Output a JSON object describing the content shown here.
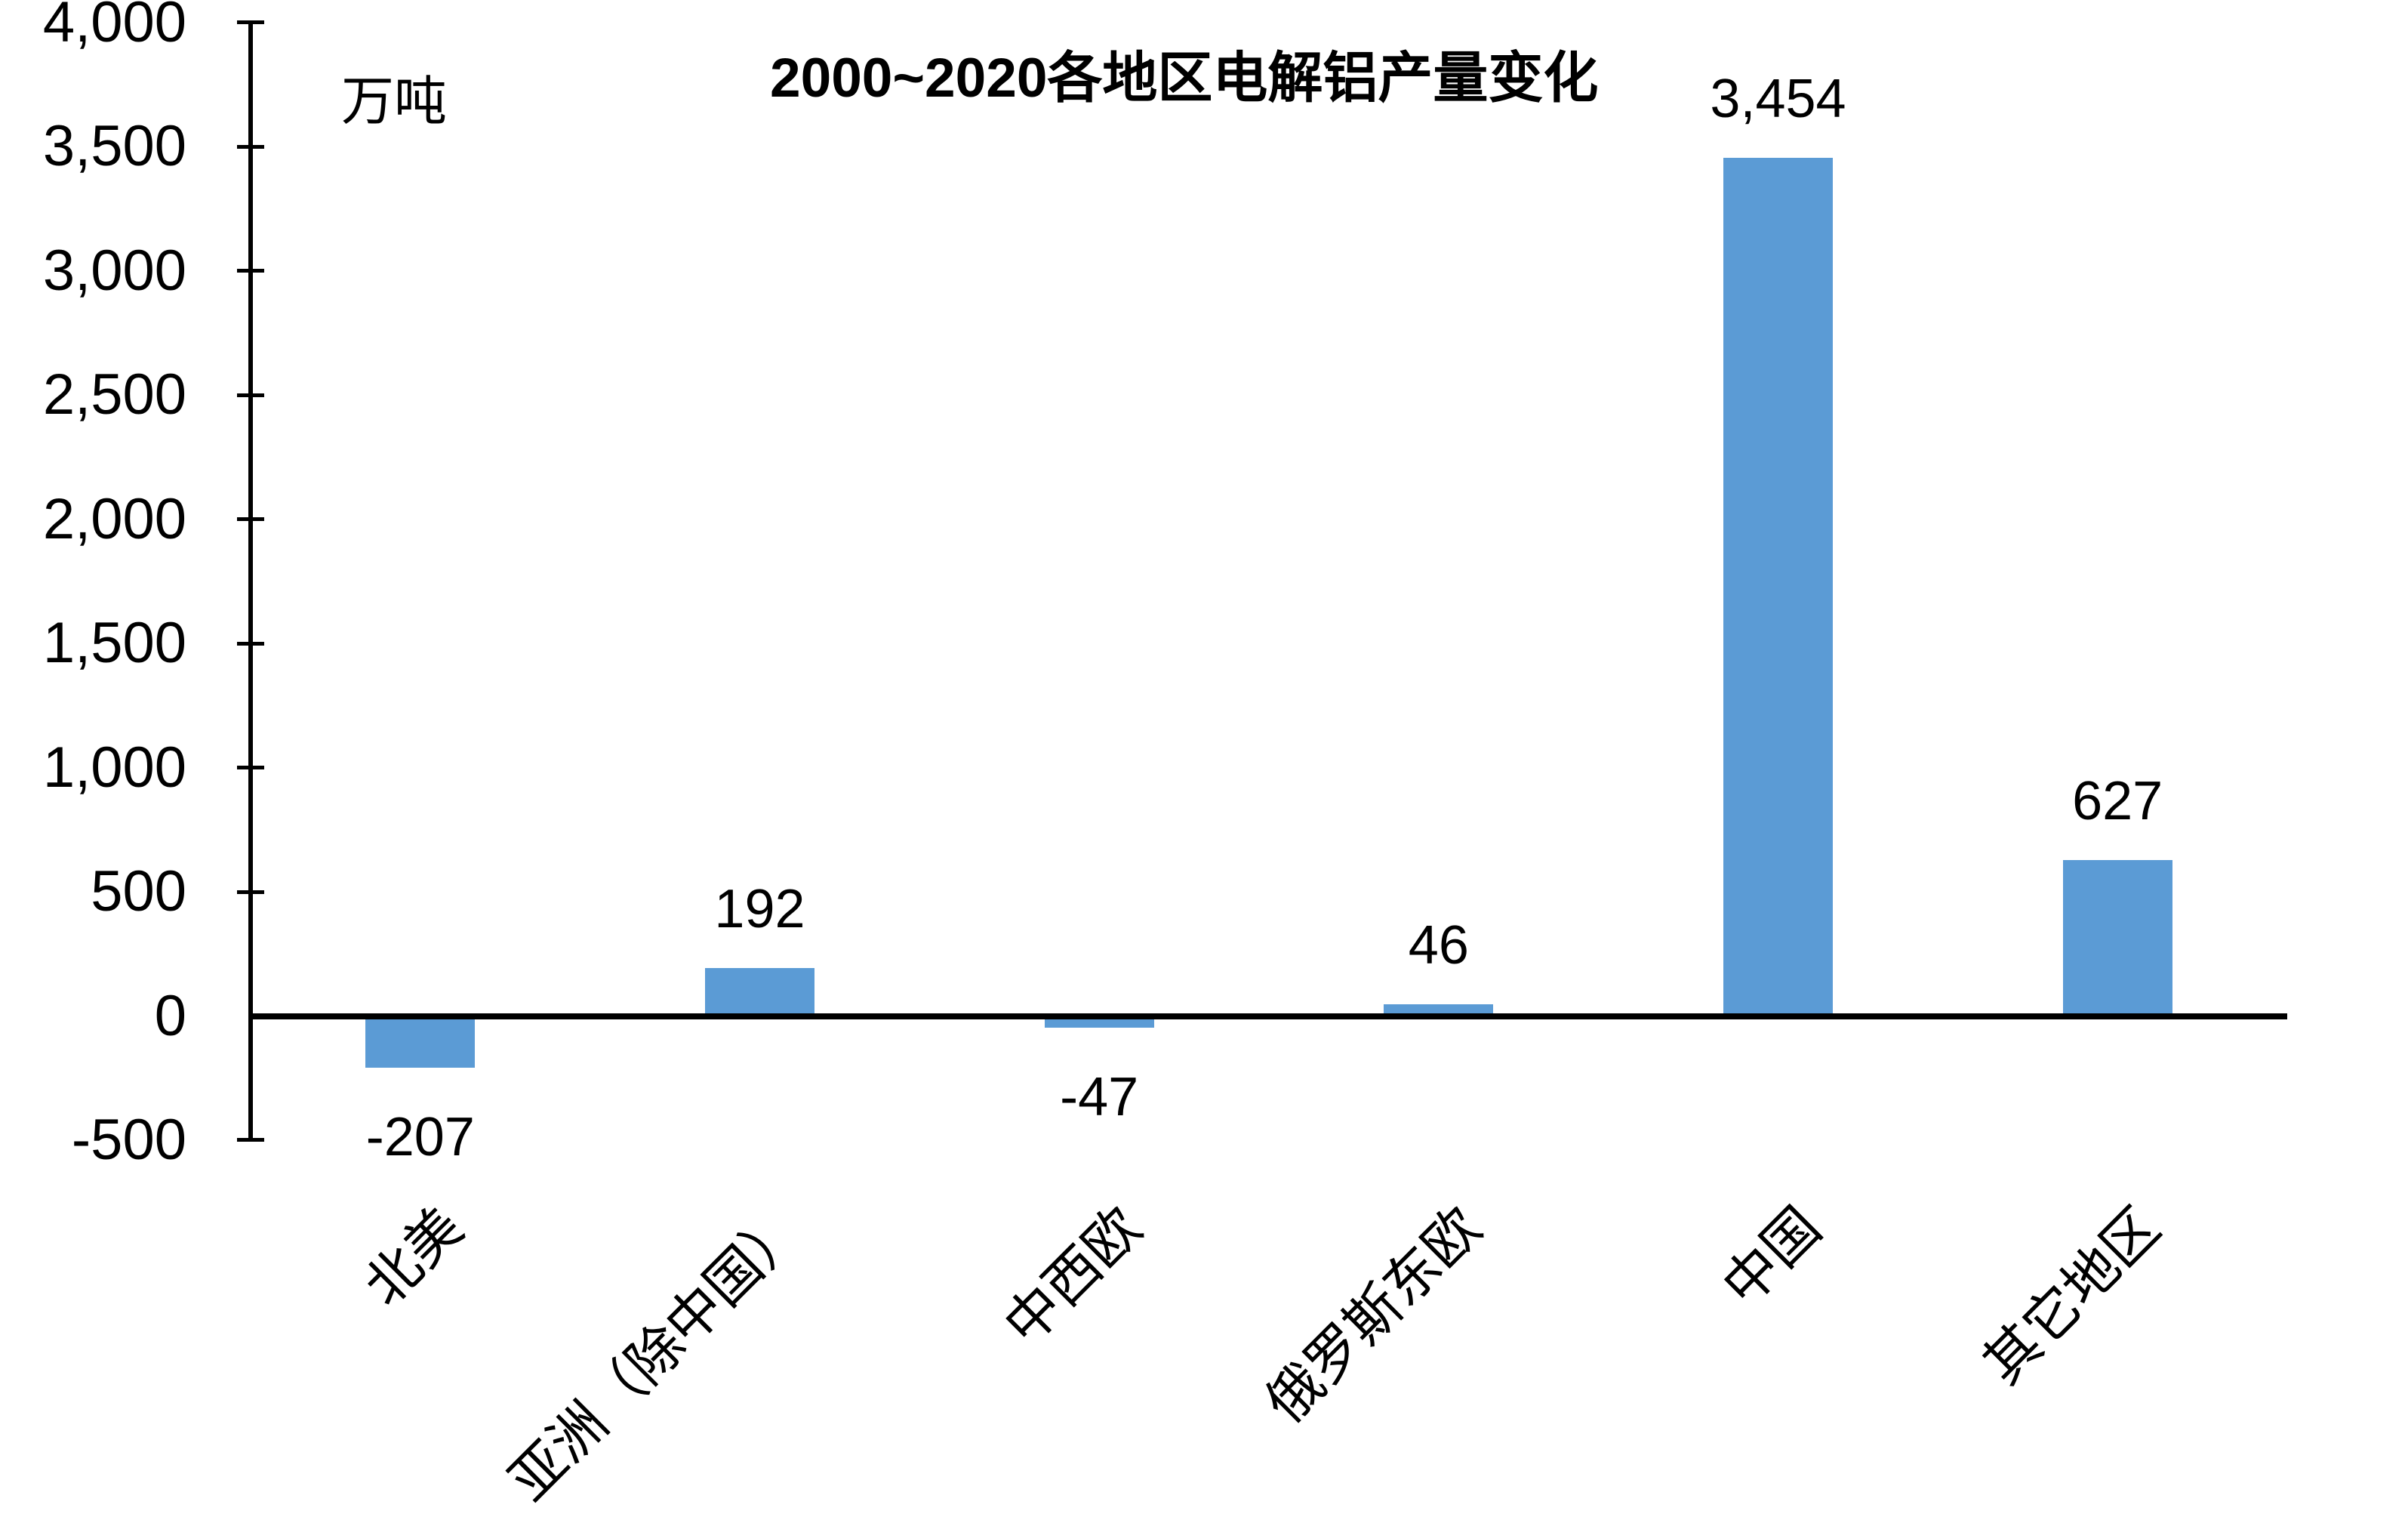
{
  "chart": {
    "title": "2000~2020各地区电解铝产量变化",
    "unit_label": "万吨"
  },
  "chart_data": {
    "type": "bar",
    "title": "2000~2020各地区电解铝产量变化",
    "ylabel": "万吨",
    "xlabel": "",
    "ylim": [
      -500,
      4000
    ],
    "ytick_step": 500,
    "grid": false,
    "legend": false,
    "bar_color": "#5B9BD5",
    "axis_color": "#000000",
    "text_color": "#000000",
    "background_color": "#ffffff",
    "categories": [
      "北美",
      "亚洲（除中国）",
      "中西欧",
      "俄罗斯东欧",
      "中国",
      "其它地区"
    ],
    "category_keys": [
      "north-america",
      "asia-excl-china",
      "west-central-europe",
      "russia-eastern-europe",
      "china",
      "other-regions"
    ],
    "values": [
      -207,
      192,
      -47,
      46,
      3454,
      627
    ],
    "value_labels": [
      "-207",
      "192",
      "-47",
      "46",
      "3,454",
      "627"
    ],
    "yticks": [
      {
        "value": 4000,
        "label": "4,000"
      },
      {
        "value": 3500,
        "label": "3,500"
      },
      {
        "value": 3000,
        "label": "3,000"
      },
      {
        "value": 2500,
        "label": "2,500"
      },
      {
        "value": 2000,
        "label": "2,000"
      },
      {
        "value": 1500,
        "label": "1,500"
      },
      {
        "value": 1000,
        "label": "1,000"
      },
      {
        "value": 500,
        "label": "500"
      },
      {
        "value": 0,
        "label": "0"
      },
      {
        "value": -500,
        "label": "-500"
      }
    ]
  }
}
